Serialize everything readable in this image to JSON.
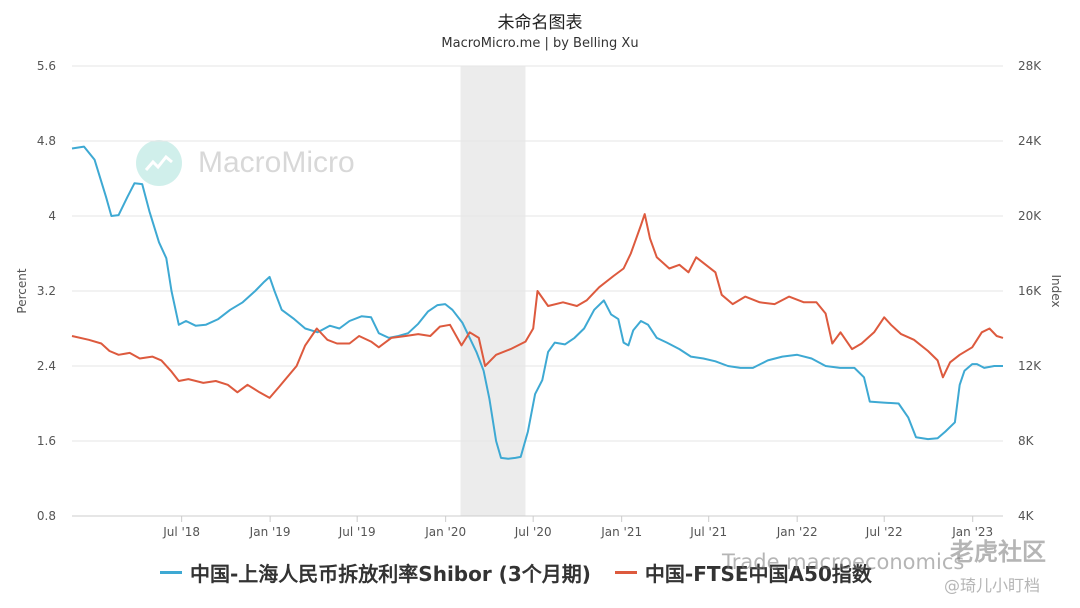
{
  "header": {
    "title": "未命名图表",
    "subtitle": "MacroMicro.me | by Belling Xu"
  },
  "watermark": {
    "brand": "MacroMicro",
    "overlay_1": "Trade macroeconomics",
    "overlay_2": "老虎社区",
    "overlay_3": "@琦儿小盯档"
  },
  "colors": {
    "series_1": "#3ea9d3",
    "series_2": "#dd5a3e",
    "recession": "#ececec",
    "grid": "#e6e6e6"
  },
  "chart_data": {
    "type": "line",
    "title": "未命名图表",
    "subtitle": "MacroMicro.me | by Belling Xu",
    "y_left": {
      "label": "Percent",
      "range": [
        0.8,
        5.6
      ],
      "ticks": [
        "0.8",
        "1.6",
        "2.4",
        "3.2",
        "4",
        "4.8",
        "5.6"
      ]
    },
    "y_right": {
      "label": "Index",
      "range": [
        4000,
        28000
      ],
      "ticks": [
        "4K",
        "8K",
        "12K",
        "16K",
        "20K",
        "24K",
        "28K"
      ]
    },
    "x_range": [
      "2017-11-15",
      "2023-03-05"
    ],
    "x_ticks": [
      {
        "label": "Jul '18",
        "date": "2018-07-01"
      },
      {
        "label": "Jan '19",
        "date": "2019-01-01"
      },
      {
        "label": "Jul '19",
        "date": "2019-07-01"
      },
      {
        "label": "Jan '20",
        "date": "2020-01-01"
      },
      {
        "label": "Jul '20",
        "date": "2020-07-01"
      },
      {
        "label": "Jan '21",
        "date": "2021-01-01"
      },
      {
        "label": "Jul '21",
        "date": "2021-07-01"
      },
      {
        "label": "Jan '22",
        "date": "2022-01-01"
      },
      {
        "label": "Jul '22",
        "date": "2022-07-01"
      },
      {
        "label": "Jan '23",
        "date": "2023-01-01"
      }
    ],
    "shaded_band": [
      "2020-02-01",
      "2020-06-15"
    ],
    "grid": true,
    "legend_position": "bottom",
    "series": [
      {
        "name": "中国-上海人民币拆放利率Shibor (3个月期)",
        "axis": "left",
        "color": "#3ea9d3",
        "points": [
          [
            "2017-11-15",
            4.72
          ],
          [
            "2017-12-10",
            4.74
          ],
          [
            "2018-01-01",
            4.6
          ],
          [
            "2018-01-25",
            4.2
          ],
          [
            "2018-02-05",
            4.0
          ],
          [
            "2018-02-20",
            4.01
          ],
          [
            "2018-03-10",
            4.2
          ],
          [
            "2018-03-25",
            4.35
          ],
          [
            "2018-04-10",
            4.34
          ],
          [
            "2018-04-25",
            4.05
          ],
          [
            "2018-05-15",
            3.72
          ],
          [
            "2018-05-30",
            3.55
          ],
          [
            "2018-06-10",
            3.2
          ],
          [
            "2018-06-25",
            2.84
          ],
          [
            "2018-07-10",
            2.88
          ],
          [
            "2018-07-30",
            2.83
          ],
          [
            "2018-08-20",
            2.84
          ],
          [
            "2018-09-15",
            2.9
          ],
          [
            "2018-10-10",
            3.0
          ],
          [
            "2018-11-05",
            3.08
          ],
          [
            "2018-12-01",
            3.2
          ],
          [
            "2018-12-20",
            3.3
          ],
          [
            "2018-12-31",
            3.35
          ],
          [
            "2019-01-10",
            3.2
          ],
          [
            "2019-01-25",
            3.0
          ],
          [
            "2019-02-20",
            2.9
          ],
          [
            "2019-03-15",
            2.8
          ],
          [
            "2019-04-10",
            2.76
          ],
          [
            "2019-05-05",
            2.83
          ],
          [
            "2019-05-25",
            2.8
          ],
          [
            "2019-06-15",
            2.88
          ],
          [
            "2019-07-10",
            2.93
          ],
          [
            "2019-07-30",
            2.92
          ],
          [
            "2019-08-15",
            2.75
          ],
          [
            "2019-09-05",
            2.7
          ],
          [
            "2019-09-25",
            2.72
          ],
          [
            "2019-10-15",
            2.75
          ],
          [
            "2019-11-05",
            2.85
          ],
          [
            "2019-11-25",
            2.98
          ],
          [
            "2019-12-15",
            3.05
          ],
          [
            "2019-12-31",
            3.06
          ],
          [
            "2020-01-15",
            3.0
          ],
          [
            "2020-02-05",
            2.86
          ],
          [
            "2020-02-20",
            2.7
          ],
          [
            "2020-03-05",
            2.55
          ],
          [
            "2020-03-20",
            2.35
          ],
          [
            "2020-04-01",
            2.05
          ],
          [
            "2020-04-15",
            1.6
          ],
          [
            "2020-04-25",
            1.42
          ],
          [
            "2020-05-10",
            1.41
          ],
          [
            "2020-05-25",
            1.42
          ],
          [
            "2020-06-05",
            1.43
          ],
          [
            "2020-06-20",
            1.7
          ],
          [
            "2020-07-05",
            2.1
          ],
          [
            "2020-07-20",
            2.25
          ],
          [
            "2020-08-01",
            2.55
          ],
          [
            "2020-08-15",
            2.65
          ],
          [
            "2020-09-05",
            2.63
          ],
          [
            "2020-09-25",
            2.7
          ],
          [
            "2020-10-15",
            2.8
          ],
          [
            "2020-11-05",
            3.0
          ],
          [
            "2020-11-25",
            3.1
          ],
          [
            "2020-12-10",
            2.95
          ],
          [
            "2020-12-25",
            2.9
          ],
          [
            "2021-01-05",
            2.65
          ],
          [
            "2021-01-15",
            2.62
          ],
          [
            "2021-01-25",
            2.78
          ],
          [
            "2021-02-10",
            2.88
          ],
          [
            "2021-02-25",
            2.84
          ],
          [
            "2021-03-15",
            2.7
          ],
          [
            "2021-04-05",
            2.65
          ],
          [
            "2021-05-01",
            2.58
          ],
          [
            "2021-05-25",
            2.5
          ],
          [
            "2021-06-20",
            2.48
          ],
          [
            "2021-07-15",
            2.45
          ],
          [
            "2021-08-10",
            2.4
          ],
          [
            "2021-09-05",
            2.38
          ],
          [
            "2021-10-01",
            2.38
          ],
          [
            "2021-11-01",
            2.46
          ],
          [
            "2021-12-01",
            2.5
          ],
          [
            "2022-01-01",
            2.52
          ],
          [
            "2022-01-31",
            2.48
          ],
          [
            "2022-03-01",
            2.4
          ],
          [
            "2022-03-31",
            2.38
          ],
          [
            "2022-04-30",
            2.38
          ],
          [
            "2022-05-20",
            2.28
          ],
          [
            "2022-06-01",
            2.02
          ],
          [
            "2022-06-30",
            2.01
          ],
          [
            "2022-07-31",
            2.0
          ],
          [
            "2022-08-20",
            1.85
          ],
          [
            "2022-09-05",
            1.64
          ],
          [
            "2022-09-30",
            1.62
          ],
          [
            "2022-10-20",
            1.63
          ],
          [
            "2022-11-05",
            1.7
          ],
          [
            "2022-11-25",
            1.8
          ],
          [
            "2022-12-05",
            2.2
          ],
          [
            "2022-12-15",
            2.35
          ],
          [
            "2022-12-31",
            2.42
          ],
          [
            "2023-01-10",
            2.42
          ],
          [
            "2023-01-25",
            2.38
          ],
          [
            "2023-02-15",
            2.4
          ],
          [
            "2023-03-05",
            2.4
          ]
        ]
      },
      {
        "name": "中国-FTSE中国A50指数",
        "axis": "right",
        "color": "#dd5a3e",
        "points": [
          [
            "2017-11-15",
            13600
          ],
          [
            "2017-12-20",
            13400
          ],
          [
            "2018-01-15",
            13200
          ],
          [
            "2018-02-01",
            12800
          ],
          [
            "2018-02-20",
            12600
          ],
          [
            "2018-03-15",
            12700
          ],
          [
            "2018-04-05",
            12400
          ],
          [
            "2018-05-01",
            12500
          ],
          [
            "2018-05-20",
            12300
          ],
          [
            "2018-06-10",
            11700
          ],
          [
            "2018-06-25",
            11200
          ],
          [
            "2018-07-15",
            11300
          ],
          [
            "2018-08-15",
            11100
          ],
          [
            "2018-09-10",
            11200
          ],
          [
            "2018-10-05",
            11000
          ],
          [
            "2018-10-25",
            10600
          ],
          [
            "2018-11-15",
            11000
          ],
          [
            "2018-12-10",
            10600
          ],
          [
            "2018-12-31",
            10300
          ],
          [
            "2019-01-20",
            10900
          ],
          [
            "2019-02-25",
            12000
          ],
          [
            "2019-03-15",
            13100
          ],
          [
            "2019-04-08",
            14000
          ],
          [
            "2019-04-30",
            13400
          ],
          [
            "2019-05-20",
            13200
          ],
          [
            "2019-06-15",
            13200
          ],
          [
            "2019-07-05",
            13600
          ],
          [
            "2019-07-30",
            13300
          ],
          [
            "2019-08-15",
            13000
          ],
          [
            "2019-09-10",
            13500
          ],
          [
            "2019-10-10",
            13600
          ],
          [
            "2019-11-05",
            13700
          ],
          [
            "2019-11-30",
            13600
          ],
          [
            "2019-12-20",
            14100
          ],
          [
            "2020-01-10",
            14200
          ],
          [
            "2020-02-03",
            13100
          ],
          [
            "2020-02-20",
            13800
          ],
          [
            "2020-03-10",
            13500
          ],
          [
            "2020-03-23",
            12000
          ],
          [
            "2020-04-15",
            12600
          ],
          [
            "2020-05-15",
            12900
          ],
          [
            "2020-06-15",
            13300
          ],
          [
            "2020-07-01",
            14000
          ],
          [
            "2020-07-10",
            16000
          ],
          [
            "2020-08-01",
            15200
          ],
          [
            "2020-09-01",
            15400
          ],
          [
            "2020-09-30",
            15200
          ],
          [
            "2020-10-20",
            15500
          ],
          [
            "2020-11-15",
            16200
          ],
          [
            "2020-12-15",
            16800
          ],
          [
            "2021-01-05",
            17200
          ],
          [
            "2021-01-20",
            18000
          ],
          [
            "2021-02-10",
            19500
          ],
          [
            "2021-02-18",
            20100
          ],
          [
            "2021-03-01",
            18800
          ],
          [
            "2021-03-15",
            17800
          ],
          [
            "2021-04-10",
            17200
          ],
          [
            "2021-05-01",
            17400
          ],
          [
            "2021-05-20",
            17000
          ],
          [
            "2021-06-05",
            17800
          ],
          [
            "2021-06-25",
            17400
          ],
          [
            "2021-07-15",
            17000
          ],
          [
            "2021-07-28",
            15800
          ],
          [
            "2021-08-20",
            15300
          ],
          [
            "2021-09-15",
            15700
          ],
          [
            "2021-10-15",
            15400
          ],
          [
            "2021-11-15",
            15300
          ],
          [
            "2021-12-15",
            15700
          ],
          [
            "2022-01-15",
            15400
          ],
          [
            "2022-02-10",
            15400
          ],
          [
            "2022-03-01",
            14800
          ],
          [
            "2022-03-15",
            13200
          ],
          [
            "2022-04-01",
            13800
          ],
          [
            "2022-04-25",
            12900
          ],
          [
            "2022-05-15",
            13200
          ],
          [
            "2022-06-10",
            13800
          ],
          [
            "2022-07-01",
            14600
          ],
          [
            "2022-07-15",
            14200
          ],
          [
            "2022-08-05",
            13700
          ],
          [
            "2022-09-01",
            13400
          ],
          [
            "2022-09-30",
            12800
          ],
          [
            "2022-10-20",
            12300
          ],
          [
            "2022-10-31",
            11400
          ],
          [
            "2022-11-15",
            12200
          ],
          [
            "2022-12-05",
            12600
          ],
          [
            "2022-12-31",
            13000
          ],
          [
            "2023-01-20",
            13800
          ],
          [
            "2023-02-05",
            14000
          ],
          [
            "2023-02-20",
            13600
          ],
          [
            "2023-03-05",
            13500
          ]
        ]
      }
    ]
  }
}
